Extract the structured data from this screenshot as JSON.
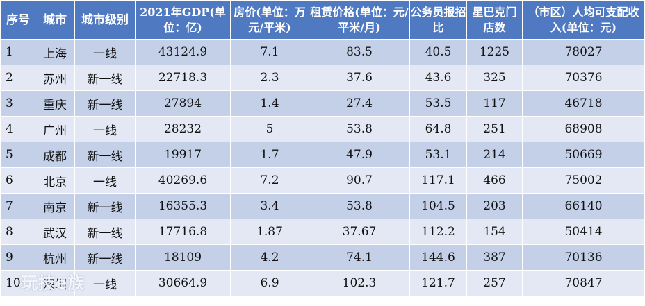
{
  "table": {
    "headers": [
      "序号",
      "城市",
      "城市级别",
      "2021年GDP(单位：亿)",
      "房价(单位：万元/平米)",
      "租赁价格(单位：元/平米/月)",
      "公务员报招比",
      "星巴克门店数",
      "（市区）人均可支配收入(单位：元)"
    ],
    "rows": [
      [
        "1",
        "上海",
        "一线",
        "43124.9",
        "7.1",
        "83.5",
        "40.5",
        "1225",
        "78027"
      ],
      [
        "2",
        "苏州",
        "新一线",
        "22718.3",
        "2.3",
        "37.6",
        "43.6",
        "325",
        "70376"
      ],
      [
        "3",
        "重庆",
        "新一线",
        "27894",
        "1.4",
        "27.4",
        "53.5",
        "117",
        "46718"
      ],
      [
        "4",
        "广州",
        "一线",
        "28232",
        "5",
        "53.8",
        "64.8",
        "251",
        "68908"
      ],
      [
        "5",
        "成都",
        "新一线",
        "19917",
        "1.7",
        "47.9",
        "53.1",
        "214",
        "50669"
      ],
      [
        "6",
        "北京",
        "一线",
        "40269.6",
        "7.2",
        "90.7",
        "117.1",
        "466",
        "75002"
      ],
      [
        "7",
        "南京",
        "新一线",
        "16355.3",
        "3.4",
        "53.8",
        "104.5",
        "203",
        "66140"
      ],
      [
        "8",
        "武汉",
        "新一线",
        "17716.8",
        "1.87",
        "37.67",
        "112.2",
        "154",
        "50414"
      ],
      [
        "9",
        "杭州",
        "新一线",
        "18109",
        "4.2",
        "74.1",
        "144.6",
        "387",
        "70136"
      ],
      [
        "10",
        "深圳",
        "一线",
        "30664.9",
        "6.9",
        "102.3",
        "121.7",
        "257",
        "70847"
      ]
    ]
  },
  "watermark": "玩技e族"
}
